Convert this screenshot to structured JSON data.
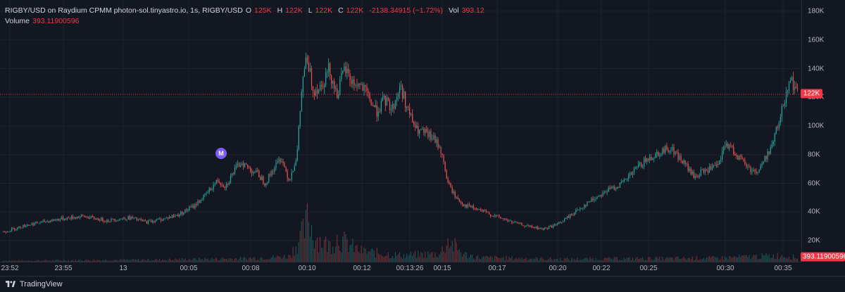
{
  "legend": {
    "symbol": "RIGBY/USD on Raydium CPMM photon-sol.tinyastro.io, 1s, RIGBY/USD",
    "open_label": "O",
    "open": "125K",
    "high_label": "H",
    "high": "122K",
    "low_label": "L",
    "low": "122K",
    "close_label": "C",
    "close": "122K",
    "change": "-2138.34915 (−1.72%)",
    "vol_label": "Vol",
    "vol": "393.12",
    "volume_label": "Volume",
    "volume_value": "393.11900596"
  },
  "price_tag": "122K",
  "volume_tag": "393.11900596",
  "marker": {
    "label": "M"
  },
  "footer": {
    "brand": "TradingView"
  },
  "colors": {
    "up": "#26a69a",
    "down": "#ef5350",
    "accent": "#f23645",
    "marker": "#7a5cf5"
  },
  "chart_data": {
    "type": "candlestick",
    "y_ticks": [
      "180K",
      "160K",
      "140K",
      "120K",
      "100K",
      "80K",
      "60K",
      "40K",
      "20K"
    ],
    "ylim": [
      0,
      180000
    ],
    "x_ticks": [
      "23:52",
      "23:55",
      "13",
      "00:05",
      "00:08",
      "00:10",
      "00:12",
      "00:13:26",
      "00:15",
      "00:17",
      "00:20",
      "00:22",
      "00:25",
      "00:30",
      "00:35"
    ],
    "last_price": 122000,
    "price_path": [
      [
        0.0,
        26000
      ],
      [
        0.03,
        31000
      ],
      [
        0.07,
        35000
      ],
      [
        0.1,
        37000
      ],
      [
        0.13,
        34000
      ],
      [
        0.16,
        36000
      ],
      [
        0.18,
        33000
      ],
      [
        0.2,
        35000
      ],
      [
        0.22,
        38000
      ],
      [
        0.24,
        44000
      ],
      [
        0.255,
        52000
      ],
      [
        0.27,
        62000
      ],
      [
        0.28,
        58000
      ],
      [
        0.29,
        68000
      ],
      [
        0.3,
        75000
      ],
      [
        0.31,
        70000
      ],
      [
        0.32,
        67000
      ],
      [
        0.33,
        60000
      ],
      [
        0.34,
        70000
      ],
      [
        0.35,
        78000
      ],
      [
        0.36,
        62000
      ],
      [
        0.37,
        80000
      ],
      [
        0.375,
        120000
      ],
      [
        0.38,
        145000
      ],
      [
        0.385,
        140000
      ],
      [
        0.39,
        125000
      ],
      [
        0.4,
        128000
      ],
      [
        0.41,
        140000
      ],
      [
        0.42,
        122000
      ],
      [
        0.43,
        140000
      ],
      [
        0.44,
        130000
      ],
      [
        0.45,
        128000
      ],
      [
        0.46,
        120000
      ],
      [
        0.47,
        110000
      ],
      [
        0.48,
        118000
      ],
      [
        0.49,
        112000
      ],
      [
        0.5,
        128000
      ],
      [
        0.51,
        110000
      ],
      [
        0.52,
        97000
      ],
      [
        0.53,
        95000
      ],
      [
        0.54,
        92000
      ],
      [
        0.55,
        85000
      ],
      [
        0.56,
        60000
      ],
      [
        0.57,
        50000
      ],
      [
        0.58,
        45000
      ],
      [
        0.6,
        41000
      ],
      [
        0.62,
        37000
      ],
      [
        0.64,
        33000
      ],
      [
        0.66,
        30000
      ],
      [
        0.68,
        28000
      ],
      [
        0.7,
        32000
      ],
      [
        0.72,
        40000
      ],
      [
        0.74,
        48000
      ],
      [
        0.76,
        55000
      ],
      [
        0.78,
        60000
      ],
      [
        0.8,
        72000
      ],
      [
        0.82,
        80000
      ],
      [
        0.84,
        85000
      ],
      [
        0.86,
        72000
      ],
      [
        0.87,
        64000
      ],
      [
        0.88,
        68000
      ],
      [
        0.9,
        72000
      ],
      [
        0.91,
        88000
      ],
      [
        0.92,
        82000
      ],
      [
        0.93,
        76000
      ],
      [
        0.94,
        70000
      ],
      [
        0.95,
        68000
      ],
      [
        0.96,
        78000
      ],
      [
        0.97,
        90000
      ],
      [
        0.98,
        110000
      ],
      [
        0.99,
        135000
      ],
      [
        1.0,
        122000
      ]
    ],
    "volume_path": [
      [
        0.0,
        2
      ],
      [
        0.1,
        3
      ],
      [
        0.2,
        4
      ],
      [
        0.3,
        6
      ],
      [
        0.36,
        10
      ],
      [
        0.38,
        60
      ],
      [
        0.385,
        90
      ],
      [
        0.39,
        50
      ],
      [
        0.41,
        30
      ],
      [
        0.42,
        45
      ],
      [
        0.45,
        20
      ],
      [
        0.5,
        12
      ],
      [
        0.55,
        15
      ],
      [
        0.56,
        40
      ],
      [
        0.58,
        14
      ],
      [
        0.6,
        8
      ],
      [
        0.7,
        5
      ],
      [
        0.8,
        6
      ],
      [
        0.9,
        7
      ],
      [
        0.98,
        12
      ],
      [
        1.0,
        8
      ]
    ]
  }
}
